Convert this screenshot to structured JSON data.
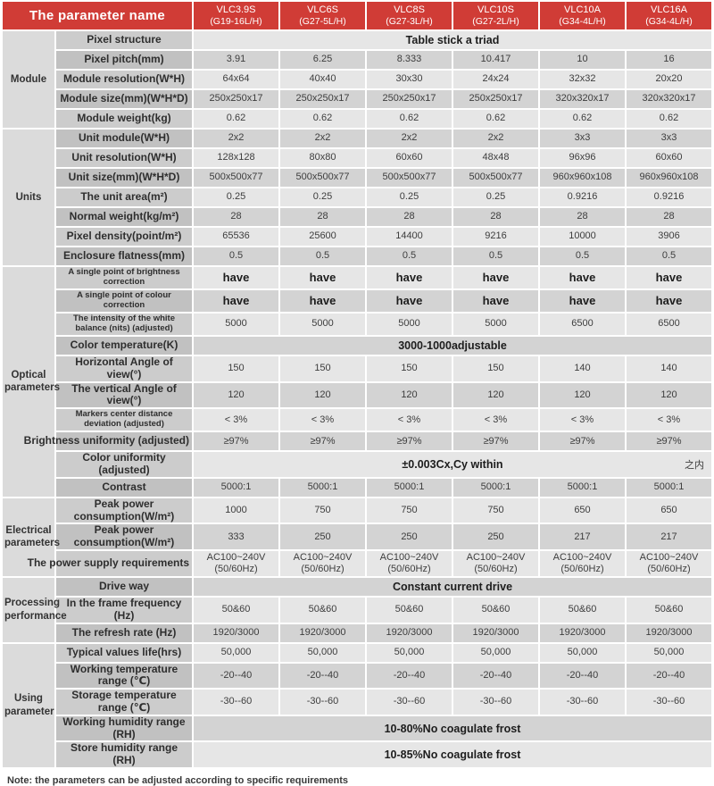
{
  "header": {
    "param_col_title": "The parameter name",
    "products": [
      {
        "model": "VLC3.9S",
        "code": "(G19-16L/H)"
      },
      {
        "model": "VLC6S",
        "code": "(G27-5L/H)"
      },
      {
        "model": "VLC8S",
        "code": "(G27-3L/H)"
      },
      {
        "model": "VLC10S",
        "code": "(G27-2L/H)"
      },
      {
        "model": "VLC10A",
        "code": "(G34-4L/H)"
      },
      {
        "model": "VLC16A",
        "code": "(G34-4L/H)"
      }
    ]
  },
  "groups": [
    {
      "name": "Module",
      "rows": [
        {
          "label": "Pixel structure",
          "merged": "Table stick a triad"
        },
        {
          "label": "Pixel pitch(mm)",
          "values": [
            "3.91",
            "6.25",
            "8.333",
            "10.417",
            "10",
            "16"
          ]
        },
        {
          "label": "Module resolution(W*H)",
          "values": [
            "64x64",
            "40x40",
            "30x30",
            "24x24",
            "32x32",
            "20x20"
          ]
        },
        {
          "label": "Module size(mm)(W*H*D)",
          "values": [
            "250x250x17",
            "250x250x17",
            "250x250x17",
            "250x250x17",
            "320x320x17",
            "320x320x17"
          ]
        },
        {
          "label": "Module weight(kg)",
          "values": [
            "0.62",
            "0.62",
            "0.62",
            "0.62",
            "0.62",
            "0.62"
          ]
        }
      ]
    },
    {
      "name": "Units",
      "rows": [
        {
          "label": "Unit module(W*H)",
          "values": [
            "2x2",
            "2x2",
            "2x2",
            "2x2",
            "3x3",
            "3x3"
          ]
        },
        {
          "label": "Unit resolution(W*H)",
          "values": [
            "128x128",
            "80x80",
            "60x60",
            "48x48",
            "96x96",
            "60x60"
          ]
        },
        {
          "label": "Unit size(mm)(W*H*D)",
          "values": [
            "500x500x77",
            "500x500x77",
            "500x500x77",
            "500x500x77",
            "960x960x108",
            "960x960x108"
          ]
        },
        {
          "label": "The unit area(m²)",
          "values": [
            "0.25",
            "0.25",
            "0.25",
            "0.25",
            "0.9216",
            "0.9216"
          ]
        },
        {
          "label": "Normal weight(kg/m²)",
          "values": [
            "28",
            "28",
            "28",
            "28",
            "28",
            "28"
          ]
        },
        {
          "label": "Pixel density(point/m²)",
          "values": [
            "65536",
            "25600",
            "14400",
            "9216",
            "10000",
            "3906"
          ]
        },
        {
          "label": "Enclosure flatness(mm)",
          "values": [
            "0.5",
            "0.5",
            "0.5",
            "0.5",
            "0.5",
            "0.5"
          ]
        }
      ]
    },
    {
      "name": "Optical parameters",
      "rows": [
        {
          "label": "A single point of brightness correction",
          "small": true,
          "values_bold": true,
          "values": [
            "have",
            "have",
            "have",
            "have",
            "have",
            "have"
          ]
        },
        {
          "label": "A single point of colour correction",
          "small": true,
          "values_bold": true,
          "values": [
            "have",
            "have",
            "have",
            "have",
            "have",
            "have"
          ]
        },
        {
          "label": "The intensity of the white balance (nits) (adjusted)",
          "small": true,
          "values": [
            "5000",
            "5000",
            "5000",
            "5000",
            "6500",
            "6500"
          ]
        },
        {
          "label": "Color temperature(K)",
          "merged": "3000-1000adjustable"
        },
        {
          "label": "Horizontal Angle of view(°)",
          "values": [
            "150",
            "150",
            "150",
            "150",
            "140",
            "140"
          ]
        },
        {
          "label": "The vertical Angle of view(°)",
          "values": [
            "120",
            "120",
            "120",
            "120",
            "120",
            "120"
          ]
        },
        {
          "label": "Markers center distance deviation (adjusted)",
          "small": true,
          "values": [
            "< 3%",
            "< 3%",
            "< 3%",
            "< 3%",
            "< 3%",
            "< 3%"
          ]
        },
        {
          "label": "Brightness uniformity (adjusted)",
          "overflow": true,
          "values": [
            "≥97%",
            "≥97%",
            "≥97%",
            "≥97%",
            "≥97%",
            "≥97%"
          ]
        },
        {
          "label": "Color uniformity (adjusted)",
          "merged": "±0.003Cx,Cy within",
          "merged_suffix": "之内"
        },
        {
          "label": "Contrast",
          "values": [
            "5000:1",
            "5000:1",
            "5000:1",
            "5000:1",
            "5000:1",
            "5000:1"
          ]
        }
      ]
    },
    {
      "name": "Electrical parameters",
      "rows": [
        {
          "label": "Peak power consumption(W/m²)",
          "values": [
            "1000",
            "750",
            "750",
            "750",
            "650",
            "650"
          ]
        },
        {
          "label": "Peak power consumption(W/m²)",
          "values": [
            "333",
            "250",
            "250",
            "250",
            "217",
            "217"
          ]
        },
        {
          "label": "The power supply requirements",
          "overflow": true,
          "two_line": true,
          "values": [
            "AC100~240V\n(50/60Hz)",
            "AC100~240V\n(50/60Hz)",
            "AC100~240V\n(50/60Hz)",
            "AC100~240V\n(50/60Hz)",
            "AC100~240V\n(50/60Hz)",
            "AC100~240V\n(50/60Hz)"
          ]
        }
      ]
    },
    {
      "name": "Processing performance",
      "rows": [
        {
          "label": "Drive way",
          "merged": "Constant current drive"
        },
        {
          "label": "In the frame frequency (Hz)",
          "values": [
            "50&60",
            "50&60",
            "50&60",
            "50&60",
            "50&60",
            "50&60"
          ]
        },
        {
          "label": "The refresh rate (Hz)",
          "values": [
            "1920/3000",
            "1920/3000",
            "1920/3000",
            "1920/3000",
            "1920/3000",
            "1920/3000"
          ]
        }
      ]
    },
    {
      "name": "Using parameter",
      "rows": [
        {
          "label": "Typical values life(hrs)",
          "values": [
            "50,000",
            "50,000",
            "50,000",
            "50,000",
            "50,000",
            "50,000"
          ]
        },
        {
          "label": "Working temperature range (℃)",
          "values": [
            "-20--40",
            "-20--40",
            "-20--40",
            "-20--40",
            "-20--40",
            "-20--40"
          ]
        },
        {
          "label": "Storage temperature range (℃)",
          "values": [
            "-30--60",
            "-30--60",
            "-30--60",
            "-30--60",
            "-30--60",
            "-30--60"
          ]
        },
        {
          "label": "Working humidity range (RH)",
          "merged": "10-80%No coagulate frost"
        },
        {
          "label": "Store humidity range (RH)",
          "merged": "10-85%No coagulate frost"
        }
      ]
    }
  ],
  "note": "Note: the parameters can be adjusted according to specific requirements"
}
